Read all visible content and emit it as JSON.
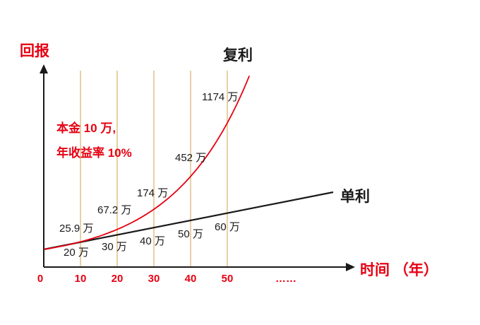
{
  "chart_data": {
    "type": "line",
    "title": "复利",
    "ylabel": "回报",
    "xlabel": "时间 （年）",
    "annotation": [
      "本金 10 万,",
      "年收益率 10%"
    ],
    "x_ticks": [
      "0",
      "10",
      "20",
      "30",
      "40",
      "50",
      "……"
    ],
    "gridline_years": [
      10,
      20,
      30,
      40,
      50
    ],
    "x_range": [
      0,
      57
    ],
    "series": [
      {
        "name": "复利",
        "color": "#e60012",
        "x": [
          0,
          10,
          20,
          30,
          40,
          50
        ],
        "values": [
          10,
          25.9,
          67.2,
          174,
          452,
          1174
        ],
        "point_labels": [
          "25.9 万",
          "67.2 万",
          "174 万",
          "452 万",
          "1174 万"
        ]
      },
      {
        "name": "单利",
        "color": "#1a1a1a",
        "x": [
          0,
          10,
          20,
          30,
          40,
          50
        ],
        "values": [
          10,
          20,
          30,
          40,
          50,
          60
        ],
        "point_labels": [
          "20 万",
          "30 万",
          "40 万",
          "50 万",
          "60 万"
        ]
      }
    ],
    "colors": {
      "red": "#e60012",
      "black": "#1a1a1a",
      "gridline": "#d0a14e",
      "background": "#ffffff"
    }
  }
}
